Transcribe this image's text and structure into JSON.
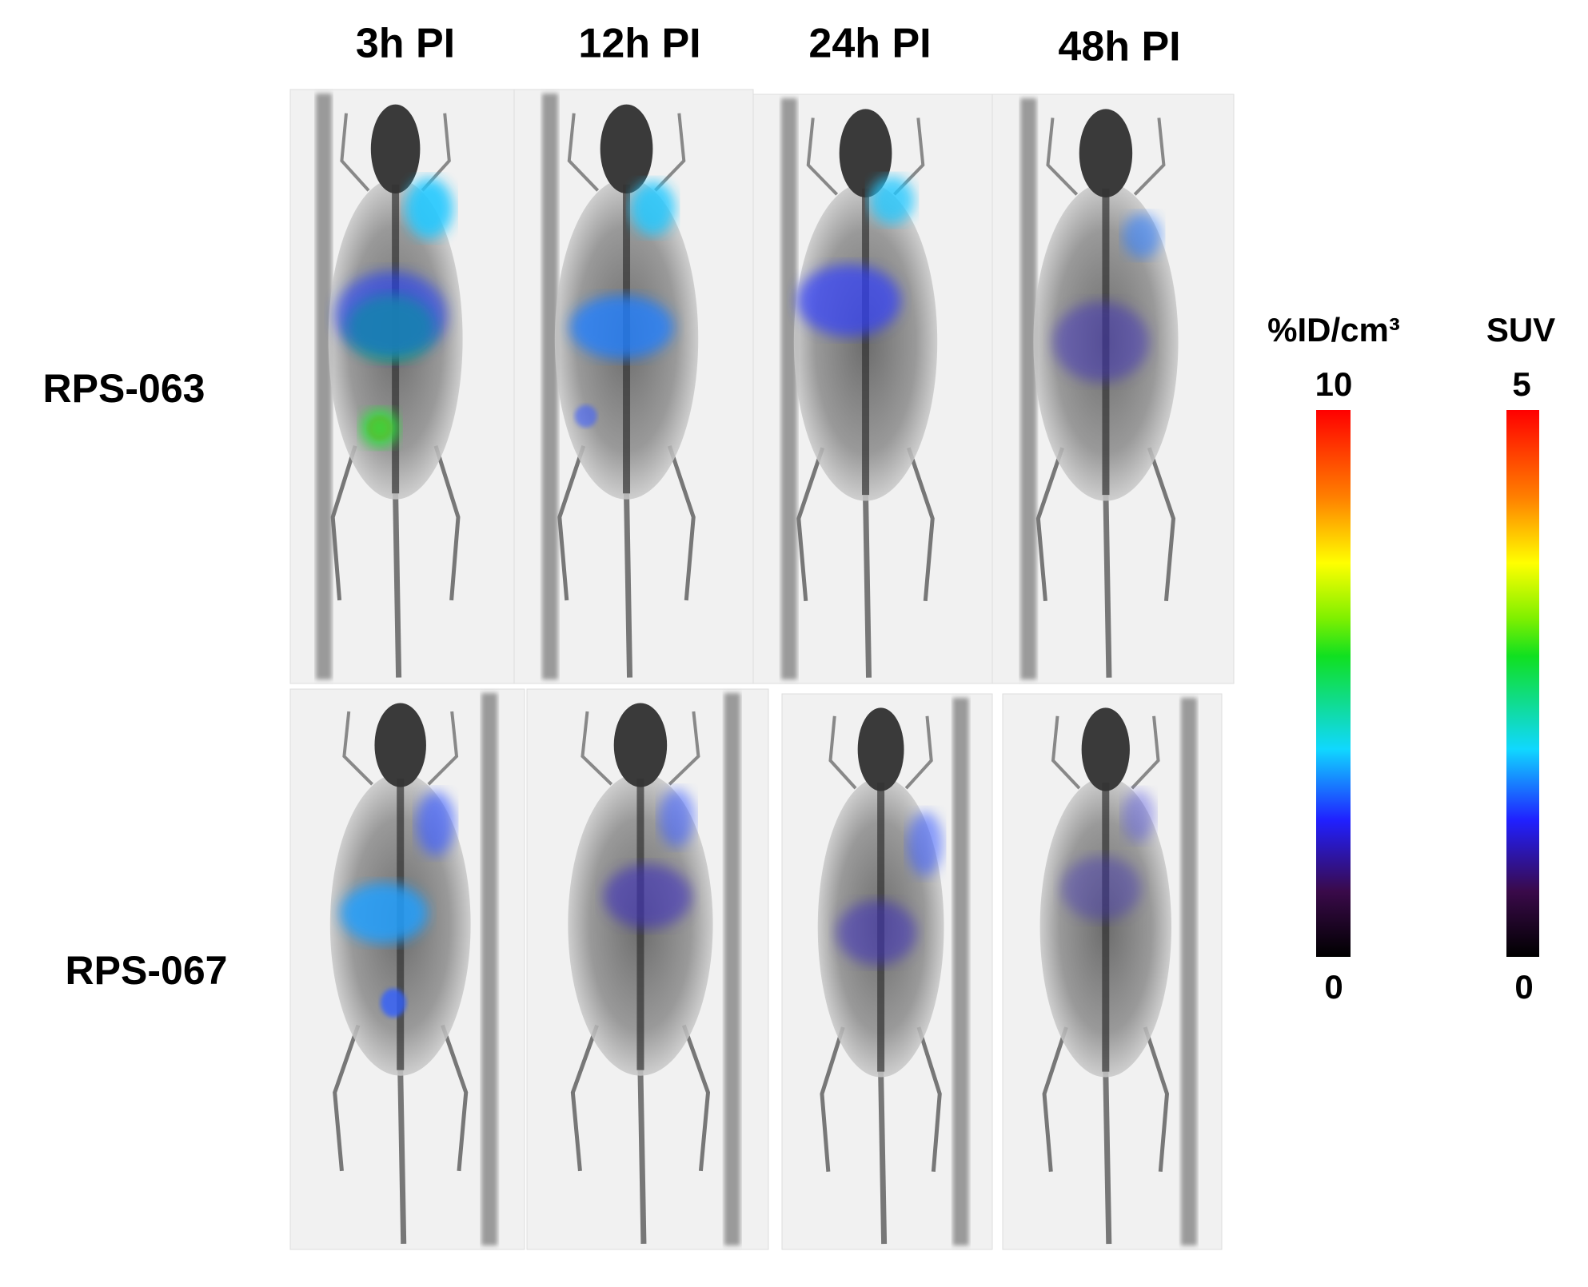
{
  "columns": [
    "3h PI",
    "12h PI",
    "24h PI",
    "48h PI"
  ],
  "rows": [
    "RPS-063",
    "RPS-067"
  ],
  "colorbars": [
    {
      "label": "%ID/cm³",
      "max": 10,
      "min": 0
    },
    {
      "label": "SUV",
      "max": 5,
      "min": 0
    }
  ]
}
